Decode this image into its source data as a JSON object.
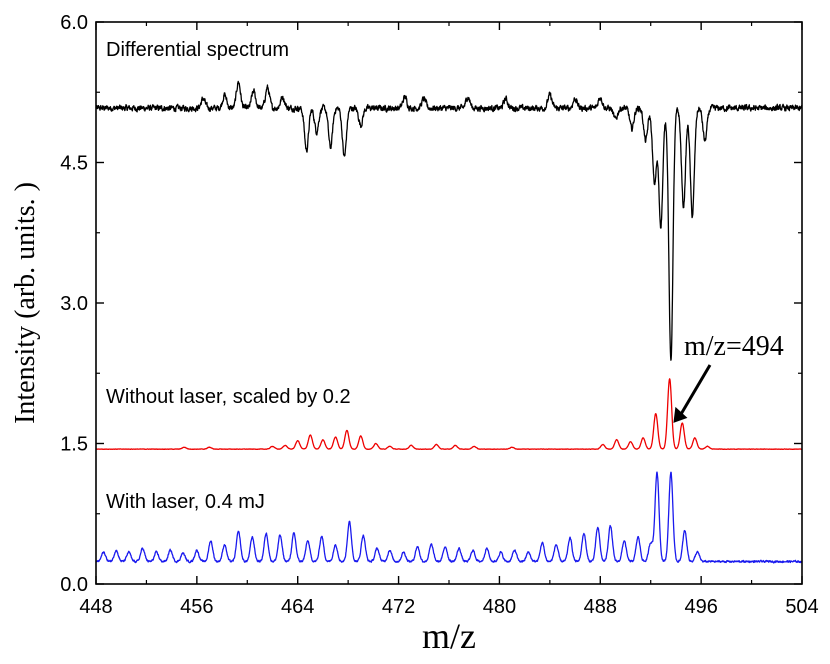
{
  "chart_data": {
    "type": "line",
    "title": "",
    "xlabel": "m/z",
    "ylabel": "Intensity (arb. units. )",
    "xlim": [
      448,
      504
    ],
    "ylim": [
      0,
      6.0
    ],
    "x_ticks": [
      448,
      456,
      464,
      472,
      480,
      488,
      496,
      504
    ],
    "y_ticks": [
      0.0,
      1.5,
      3.0,
      4.5,
      6.0
    ],
    "y_tick_labels": [
      "0.0",
      "1.5",
      "3.0",
      "4.5",
      "6.0"
    ],
    "series": [
      {
        "name": "Differential spectrum",
        "color": "#000000",
        "baseline": 5.08,
        "peaks": [
          [
            456.5,
            0.1
          ],
          [
            458.2,
            0.14
          ],
          [
            459.3,
            0.28
          ],
          [
            460.5,
            0.18
          ],
          [
            461.6,
            0.22
          ],
          [
            462.8,
            0.12
          ],
          [
            464.7,
            -0.45
          ],
          [
            465.5,
            -0.25
          ],
          [
            466.6,
            -0.42
          ],
          [
            467.7,
            -0.52
          ],
          [
            469.0,
            -0.18
          ],
          [
            472.5,
            0.12
          ],
          [
            474.0,
            0.1
          ],
          [
            477.5,
            0.12
          ],
          [
            480.5,
            0.1
          ],
          [
            484.0,
            0.14
          ],
          [
            486.0,
            0.1
          ],
          [
            488.0,
            0.12
          ],
          [
            489.2,
            -0.12
          ],
          [
            490.5,
            -0.22
          ],
          [
            491.6,
            -0.35
          ],
          [
            492.3,
            -0.8
          ],
          [
            492.8,
            -1.25
          ],
          [
            493.6,
            -2.7
          ],
          [
            494.6,
            -1.05
          ],
          [
            495.3,
            -1.15
          ],
          [
            496.3,
            -0.35
          ]
        ]
      },
      {
        "name": "Without laser, scaled by 0.2",
        "color": "#ee0000",
        "baseline": 1.44,
        "peaks": [
          [
            455.0,
            0.02
          ],
          [
            457.0,
            0.02
          ],
          [
            462.0,
            0.03
          ],
          [
            463.0,
            0.04
          ],
          [
            464.0,
            0.09
          ],
          [
            465.0,
            0.15
          ],
          [
            466.0,
            0.1
          ],
          [
            467.0,
            0.13
          ],
          [
            467.9,
            0.2
          ],
          [
            469.0,
            0.14
          ],
          [
            470.2,
            0.06
          ],
          [
            471.3,
            0.03
          ],
          [
            473.0,
            0.04
          ],
          [
            475.0,
            0.05
          ],
          [
            476.5,
            0.04
          ],
          [
            478.0,
            0.03
          ],
          [
            481.0,
            0.02
          ],
          [
            488.2,
            0.05
          ],
          [
            489.3,
            0.1
          ],
          [
            490.4,
            0.08
          ],
          [
            491.4,
            0.12
          ],
          [
            492.4,
            0.38
          ],
          [
            493.5,
            0.75
          ],
          [
            494.5,
            0.28
          ],
          [
            495.5,
            0.12
          ],
          [
            496.5,
            0.03
          ]
        ]
      },
      {
        "name": "With laser, 0.4 mJ",
        "color": "#1a1aee",
        "baseline": 0.24,
        "peaks": [
          [
            448.6,
            0.1
          ],
          [
            449.6,
            0.12
          ],
          [
            450.6,
            0.1
          ],
          [
            451.7,
            0.14
          ],
          [
            452.8,
            0.1
          ],
          [
            453.9,
            0.12
          ],
          [
            454.9,
            0.09
          ],
          [
            456.0,
            0.12
          ],
          [
            457.1,
            0.22
          ],
          [
            458.2,
            0.18
          ],
          [
            459.3,
            0.32
          ],
          [
            460.4,
            0.26
          ],
          [
            461.5,
            0.3
          ],
          [
            462.6,
            0.28
          ],
          [
            463.7,
            0.3
          ],
          [
            464.8,
            0.22
          ],
          [
            465.9,
            0.27
          ],
          [
            467.0,
            0.18
          ],
          [
            468.1,
            0.42
          ],
          [
            469.2,
            0.28
          ],
          [
            470.3,
            0.14
          ],
          [
            471.3,
            0.12
          ],
          [
            472.4,
            0.1
          ],
          [
            473.5,
            0.16
          ],
          [
            474.6,
            0.18
          ],
          [
            475.7,
            0.16
          ],
          [
            476.8,
            0.14
          ],
          [
            477.9,
            0.12
          ],
          [
            479.0,
            0.14
          ],
          [
            480.1,
            0.1
          ],
          [
            481.2,
            0.12
          ],
          [
            482.3,
            0.1
          ],
          [
            483.4,
            0.2
          ],
          [
            484.5,
            0.18
          ],
          [
            485.6,
            0.25
          ],
          [
            486.7,
            0.3
          ],
          [
            487.8,
            0.36
          ],
          [
            488.8,
            0.38
          ],
          [
            489.9,
            0.22
          ],
          [
            491.0,
            0.26
          ],
          [
            492.0,
            0.2
          ],
          [
            492.5,
            0.95
          ],
          [
            493.6,
            0.95
          ],
          [
            494.7,
            0.33
          ],
          [
            495.7,
            0.1
          ]
        ]
      }
    ],
    "series_labels": [
      {
        "series": 0,
        "text": "Differential spectrum"
      },
      {
        "series": 1,
        "text": "Without laser, scaled by 0.2"
      },
      {
        "series": 2,
        "text": "With laser, 0.4 mJ"
      }
    ],
    "annotations": [
      {
        "text": "m/z=494",
        "x": 493.8,
        "y": 1.72
      }
    ]
  }
}
